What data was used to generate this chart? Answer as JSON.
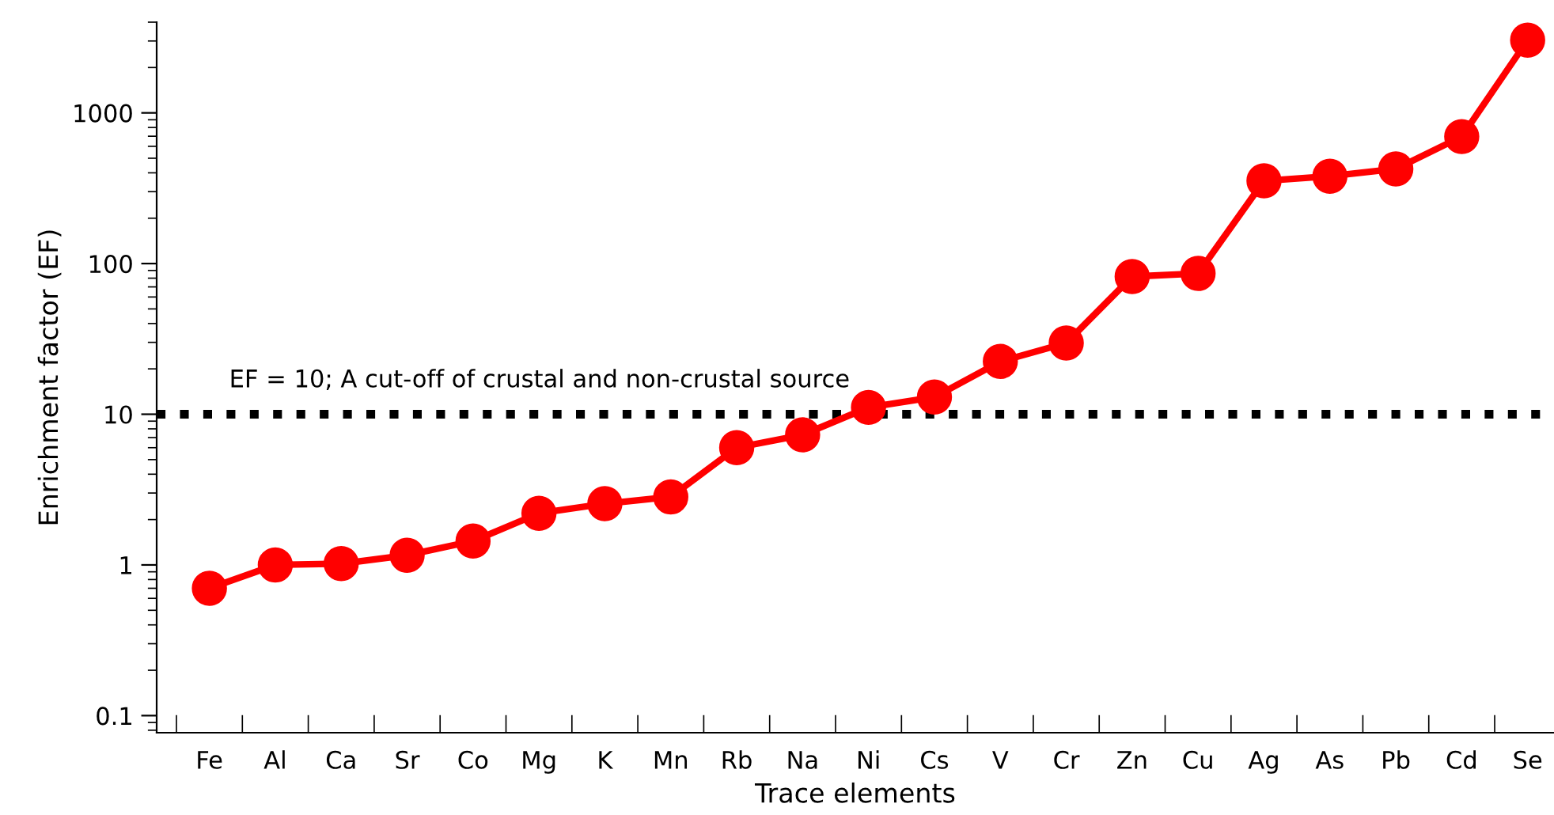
{
  "chart_data": {
    "type": "line",
    "xlabel": "Trace elements",
    "ylabel": "Enrichment factor (EF)",
    "categories": [
      "Fe",
      "Al",
      "Ca",
      "Sr",
      "Co",
      "Mg",
      "K",
      "Mn",
      "Rb",
      "Na",
      "Ni",
      "Cs",
      "V",
      "Cr",
      "Zn",
      "Cu",
      "Ag",
      "As",
      "Pb",
      "Cd",
      "Se"
    ],
    "series": [
      {
        "color": "#ff0000",
        "values": [
          0.7,
          1.0,
          1.02,
          1.16,
          1.44,
          2.2,
          2.55,
          2.83,
          6.0,
          7.3,
          11.1,
          13.0,
          22.4,
          29.7,
          82,
          86,
          354,
          380,
          425,
          696,
          3040
        ]
      }
    ],
    "log": "y",
    "ylim": [
      0.077,
      4000
    ],
    "yticks": [
      0.1,
      1,
      10,
      100,
      1000
    ],
    "ref_lines": [
      {
        "axis": "y",
        "value": 10,
        "label": "EF = 10; A cut-off of crustal and non-crustal source",
        "color": "#000000",
        "line_style": "dotted"
      }
    ],
    "marker": "circle",
    "line_style": "solid",
    "grid": false,
    "legend": false
  }
}
